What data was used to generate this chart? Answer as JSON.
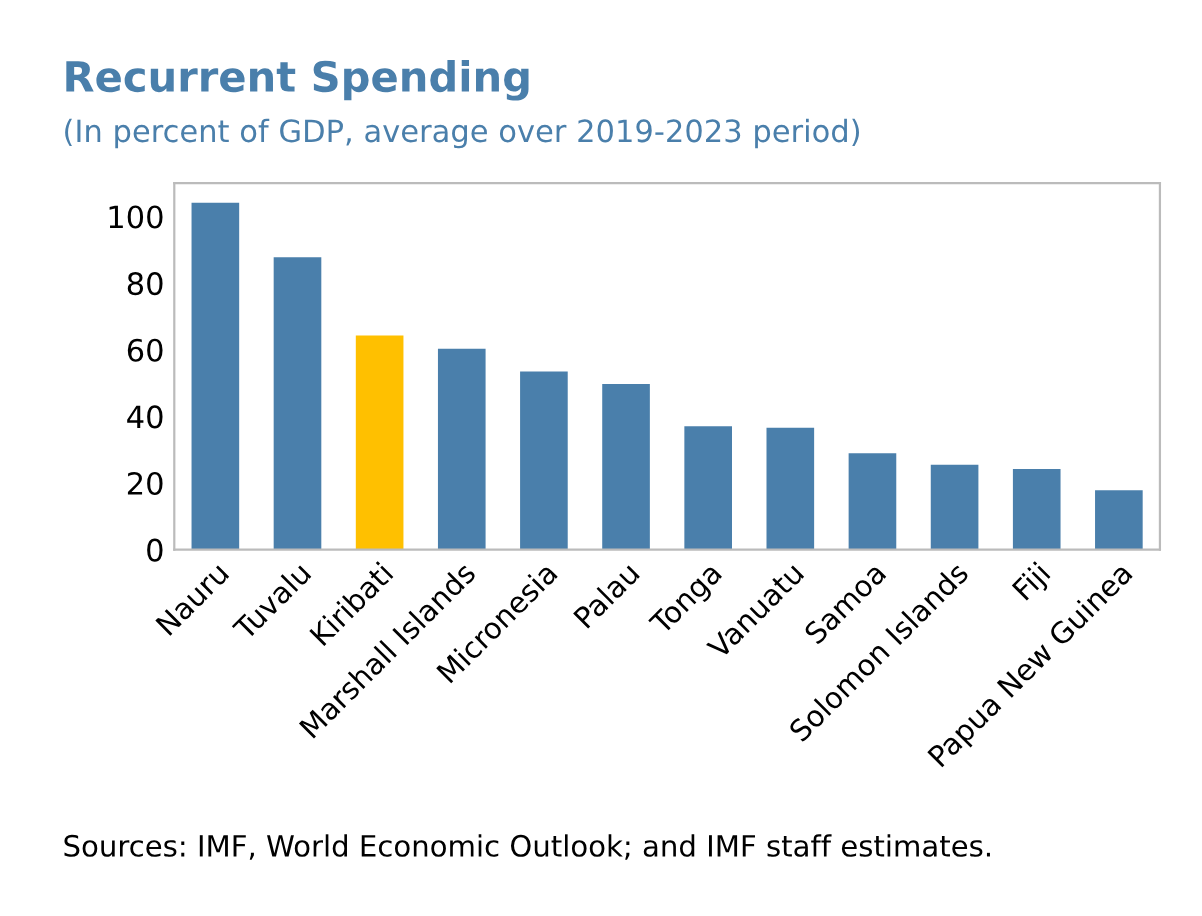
{
  "chart_data": {
    "type": "bar",
    "title": "Recurrent Spending",
    "subtitle": "(In percent of GDP, average over 2019-2023 period)",
    "categories": [
      "Nauru",
      "Tuvalu",
      "Kiribati",
      "Marshall Islands",
      "Micronesia",
      "Palau",
      "Tonga",
      "Vanuatu",
      "Samoa",
      "Solomon Islands",
      "Fiji",
      "Papua New Guinea"
    ],
    "values": [
      104.1,
      87.8,
      64.3,
      60.3,
      53.5,
      49.7,
      37.0,
      36.6,
      28.9,
      25.5,
      24.2,
      17.8
    ],
    "colors": [
      "#4a7fab",
      "#4a7fab",
      "#ffc000",
      "#4a7fab",
      "#4a7fab",
      "#4a7fab",
      "#4a7fab",
      "#4a7fab",
      "#4a7fab",
      "#4a7fab",
      "#4a7fab",
      "#4a7fab"
    ],
    "ylim": [
      0,
      110
    ],
    "yticks": [
      0,
      20,
      40,
      60,
      80,
      100
    ],
    "grid": false,
    "annotations": [
      "Sources: IMF, World Economic Outlook; and IMF staff estimates."
    ]
  }
}
